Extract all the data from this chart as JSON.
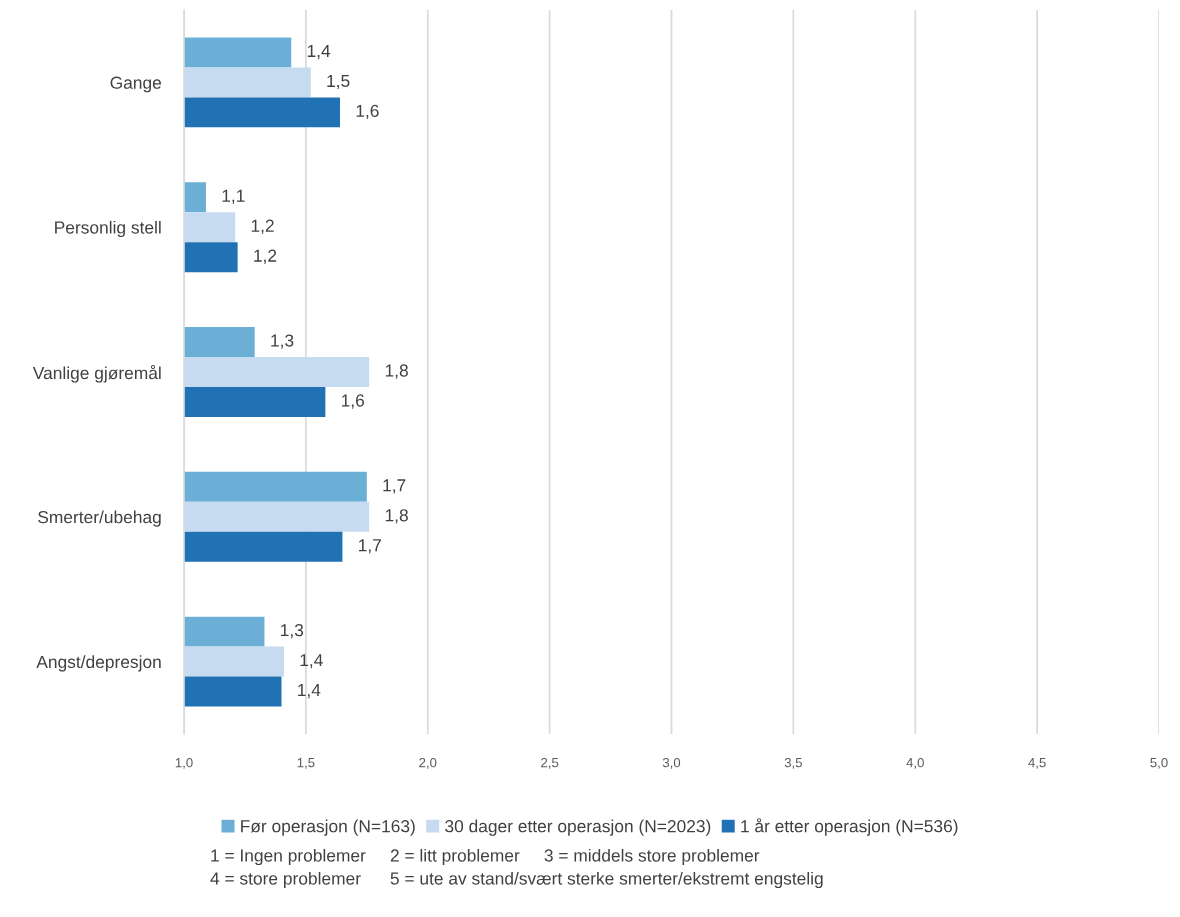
{
  "chart_data": {
    "type": "bar",
    "orientation": "horizontal",
    "categories": [
      "Gange",
      "Personlig stell",
      "Vanlige gjøremål",
      "Smerter/ubehag",
      "Angst/depresjon"
    ],
    "series": [
      {
        "name": "Før operasjon (N=163)",
        "color": "#6baed6",
        "values": [
          1.44,
          1.09,
          1.29,
          1.75,
          1.33
        ],
        "value_labels": [
          "1,4",
          "1,1",
          "1,3",
          "1,7",
          "1,3"
        ]
      },
      {
        "name": "30 dager etter operasjon (N=2023)",
        "color": "#c6dbef",
        "values": [
          1.52,
          1.21,
          1.76,
          1.76,
          1.41
        ],
        "value_labels": [
          "1,5",
          "1,2",
          "1,8",
          "1,8",
          "1,4"
        ]
      },
      {
        "name": "1 år etter operasjon (N=536)",
        "color": "#2171b5",
        "values": [
          1.64,
          1.22,
          1.58,
          1.65,
          1.4
        ],
        "value_labels": [
          "1,6",
          "1,2",
          "1,6",
          "1,7",
          "1,4"
        ]
      }
    ],
    "xlim": [
      1.0,
      5.0
    ],
    "xticks": [
      {
        "value": 1.0,
        "label": "1,0"
      },
      {
        "value": 1.5,
        "label": "1,5"
      },
      {
        "value": 2.0,
        "label": "2,0"
      },
      {
        "value": 2.5,
        "label": "2,5"
      },
      {
        "value": 3.0,
        "label": "3,0"
      },
      {
        "value": 3.5,
        "label": "3,5"
      },
      {
        "value": 4.0,
        "label": "4,0"
      },
      {
        "value": 4.5,
        "label": "4,5"
      },
      {
        "value": 5.0,
        "label": "5,0"
      }
    ],
    "grid": "x",
    "legend": "bottom",
    "annotations": [
      "1 = Ingen problemer     2 = litt problemer     3 = middels store problemer",
      "4 = store problemer      5 = ute av stand/svært sterke smerter/ekstremt engstelig"
    ]
  }
}
